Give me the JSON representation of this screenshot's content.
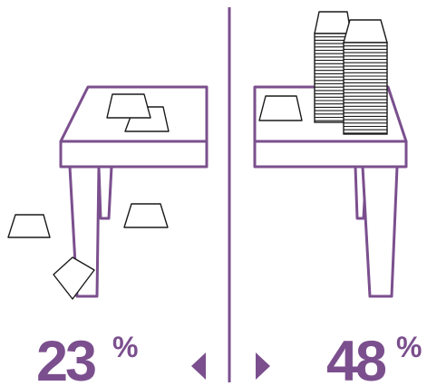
{
  "colors": {
    "accent": "#7b4f8e",
    "paper_stroke": "#1a1a1a",
    "background": "#ffffff"
  },
  "left_panel": {
    "percent_value": "23",
    "percent_symbol": "%",
    "arrow_icon": "triangle-left-icon"
  },
  "right_panel": {
    "percent_value": "48",
    "percent_symbol": "%",
    "arrow_icon": "triangle-right-icon"
  }
}
